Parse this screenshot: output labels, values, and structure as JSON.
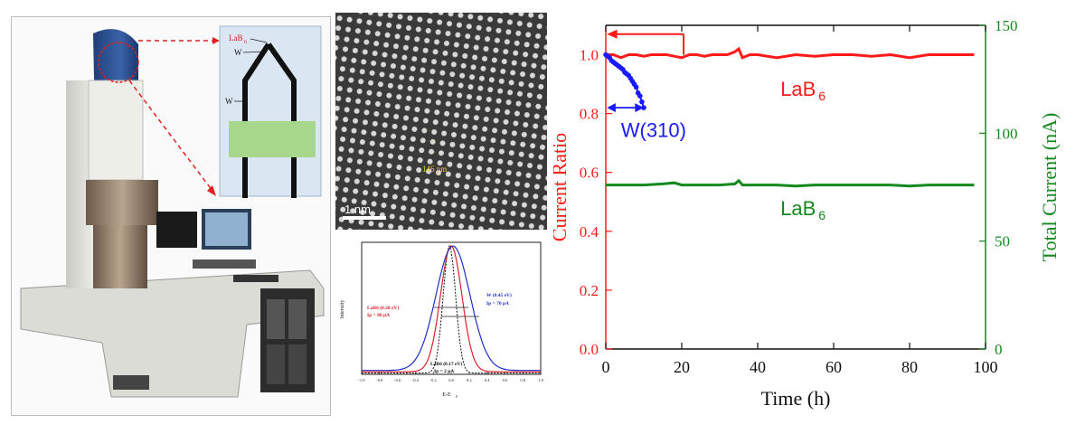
{
  "inset": {
    "tip_label": "LaB",
    "tip_sub": "6",
    "wire_label": "W"
  },
  "hrtem": {
    "scale_bar": "1 nm",
    "annotation": "146 pm"
  },
  "spectrum": {
    "ylabel": "Intensity",
    "xlabel": "E-E",
    "xlabel_sub": "F",
    "x_ticks": [
      "-1.0",
      "-0.8",
      "-0.6",
      "-0.4",
      "-0.2",
      "0.0",
      "0.2",
      "0.4",
      "0.6",
      "0.8",
      "1.0"
    ],
    "labels": {
      "lab6_red_1": "LaB6 (0.28 eV)",
      "lab6_red_2": "Ip = 80 pA",
      "w_blue_1": "W (0.45 eV)",
      "w_blue_2": "Ip = 70 pA",
      "lab6_black_1": "LaB6 (0.17 eV)",
      "lab6_black_2": "Ip = 2 pA"
    },
    "colors": {
      "lab6_red": "#e0202a",
      "w_blue": "#2030c8",
      "lab6_black": "#111111"
    }
  },
  "chart_data": {
    "type": "line",
    "xlabel": "Time (h)",
    "ylabel_left": "Current Ratio",
    "ylabel_right": "Total Current (nA)",
    "xlim": [
      0,
      100
    ],
    "ylim_left": [
      0.0,
      1.1
    ],
    "ylim_right": [
      0,
      150
    ],
    "x_ticks": [
      "0",
      "20",
      "40",
      "60",
      "80",
      "100"
    ],
    "y_left_ticks": [
      "0.0",
      "0.2",
      "0.4",
      "0.6",
      "0.8",
      "1.0"
    ],
    "y_right_ticks": [
      "0",
      "50",
      "100",
      "150"
    ],
    "annotations": {
      "lab6_ratio_label": "LaB",
      "lab6_ratio_sub": "6",
      "w_label": "W(310)",
      "lab6_total_label": "LaB",
      "lab6_total_sub": "6"
    },
    "colors": {
      "ratio_lab6": "#ff1a1a",
      "ratio_w": "#1a1aff",
      "total_lab6": "#13891f",
      "left_axis": "#ff1a1a",
      "right_axis": "#13891f"
    },
    "series": [
      {
        "axis": "left",
        "color": "ratio_lab6",
        "x": [
          0,
          2,
          4,
          6,
          8,
          10,
          12,
          14,
          16,
          18,
          20,
          22,
          24,
          26,
          28,
          30,
          32,
          34,
          35,
          36,
          38,
          40,
          45,
          50,
          55,
          60,
          65,
          70,
          75,
          80,
          85,
          90,
          95,
          97
        ],
        "y": [
          1.0,
          1.0,
          0.99,
          1.0,
          1.0,
          0.995,
          1.0,
          1.0,
          1.0,
          0.995,
          0.99,
          1.0,
          1.0,
          0.995,
          1.0,
          1.0,
          1.0,
          1.01,
          1.02,
          0.99,
          1.0,
          1.0,
          0.99,
          1.0,
          0.995,
          1.0,
          1.0,
          0.995,
          1.0,
          0.99,
          1.0,
          1.0,
          1.0,
          1.0
        ]
      },
      {
        "axis": "left",
        "color": "ratio_w",
        "x": [
          0,
          0.5,
          1,
          1.5,
          2,
          2.5,
          3,
          3.5,
          4,
          4.5,
          5,
          5.5,
          6,
          6.5,
          7,
          7.5,
          8,
          8.5,
          9,
          9.5,
          10
        ],
        "y": [
          1.0,
          0.995,
          0.99,
          0.98,
          0.975,
          0.97,
          0.965,
          0.96,
          0.955,
          0.95,
          0.94,
          0.935,
          0.93,
          0.92,
          0.91,
          0.9,
          0.89,
          0.87,
          0.86,
          0.84,
          0.82
        ]
      },
      {
        "axis": "right",
        "color": "total_lab6",
        "x": [
          0,
          5,
          10,
          15,
          18,
          20,
          25,
          30,
          34,
          35,
          36,
          40,
          45,
          50,
          55,
          60,
          65,
          70,
          75,
          80,
          85,
          90,
          95,
          97
        ],
        "y": [
          76,
          76,
          76,
          76.5,
          77,
          76,
          76,
          76,
          76.5,
          78,
          76,
          76,
          76,
          75.5,
          76,
          76,
          76,
          76,
          76,
          75.5,
          76,
          76,
          76,
          76
        ]
      }
    ]
  }
}
